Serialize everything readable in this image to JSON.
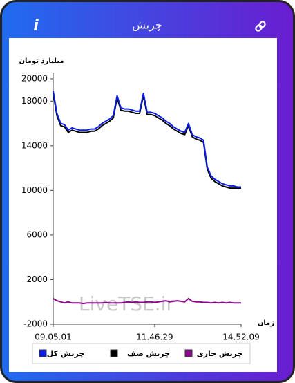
{
  "header": {
    "title": "چربش",
    "info": "i"
  },
  "chart_data": {
    "type": "line",
    "y_label": "میلیارد تومان",
    "x_label": "زمان",
    "watermark": "LiveTSE.ir",
    "categories": [
      "09.05.01",
      null,
      null,
      null,
      null,
      null,
      null,
      null,
      null,
      null,
      null,
      null,
      null,
      null,
      null,
      null,
      null,
      null,
      null,
      null,
      null,
      null,
      null,
      null,
      null,
      null,
      null,
      "11.46.29",
      null,
      null,
      null,
      null,
      null,
      null,
      null,
      null,
      null,
      null,
      null,
      null,
      null,
      null,
      null,
      null,
      null,
      null,
      null,
      null,
      null,
      null,
      "14.52.09"
    ],
    "series": [
      {
        "name": "چربش کل",
        "color": "#0a1ee6",
        "values": [
          18900,
          16900,
          16000,
          15900,
          15400,
          15600,
          15500,
          15400,
          15400,
          15400,
          15500,
          15500,
          15700,
          16000,
          16200,
          16400,
          16700,
          18500,
          17400,
          17300,
          17300,
          17200,
          17100,
          17100,
          18700,
          17000,
          17000,
          16900,
          16700,
          16500,
          16200,
          16000,
          15700,
          15500,
          15300,
          15200,
          16000,
          15000,
          14800,
          14700,
          14500,
          12100,
          11300,
          11000,
          10800,
          10600,
          10500,
          10400,
          10400,
          10300,
          10300
        ]
      },
      {
        "name": "چربش صف",
        "color": "#000000",
        "values": [
          18700,
          16700,
          15800,
          15700,
          15200,
          15400,
          15300,
          15200,
          15200,
          15200,
          15300,
          15300,
          15500,
          15800,
          16000,
          16200,
          16500,
          18300,
          17200,
          17100,
          17100,
          17000,
          16900,
          16900,
          18500,
          16800,
          16800,
          16700,
          16500,
          16300,
          16000,
          15800,
          15500,
          15300,
          15100,
          15000,
          15800,
          14800,
          14600,
          14500,
          14300,
          11900,
          11100,
          10800,
          10600,
          10400,
          10300,
          10200,
          10200,
          10200,
          10200
        ]
      },
      {
        "name": "چربش جاری",
        "color": "#8b0a8b",
        "values": [
          300,
          100,
          0,
          -100,
          0,
          -100,
          -100,
          -100,
          -150,
          -100,
          -100,
          -100,
          -100,
          -100,
          -50,
          -100,
          -100,
          -100,
          -100,
          -50,
          0,
          -50,
          0,
          -50,
          -50,
          0,
          0,
          -50,
          0,
          50,
          100,
          0,
          50,
          100,
          50,
          0,
          300,
          50,
          0,
          0,
          -50,
          -50,
          -100,
          -50,
          -100,
          -50,
          -100,
          -50,
          -100,
          -100,
          -100
        ]
      }
    ],
    "ylim": [
      -2000,
      20000
    ],
    "yticks": [
      -2000,
      2000,
      6000,
      10000,
      14000,
      18000,
      20000
    ],
    "legend": "bottom"
  }
}
